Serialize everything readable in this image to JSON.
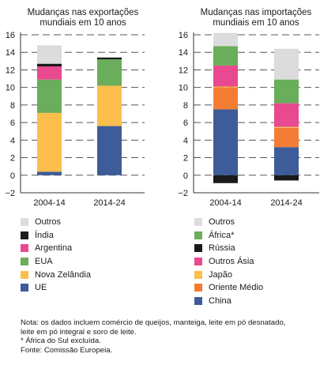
{
  "chart_data": [
    {
      "type": "bar",
      "stacked": true,
      "title": "Mudanças nas exportações\nmundiais em 10 anos",
      "categories": [
        "2004-14",
        "2014-24"
      ],
      "ylim": [
        -2,
        16
      ],
      "yticks": [
        16,
        14,
        12,
        10,
        8,
        6,
        4,
        2,
        0,
        -2
      ],
      "grid": "dashed horizontal",
      "legend_position": "bottom",
      "series": [
        {
          "name": "UE",
          "color": "#3e5c99",
          "values": [
            0.4,
            5.6
          ]
        },
        {
          "name": "Nova Zelândia",
          "color": "#fcbf4b",
          "values": [
            6.7,
            4.6
          ]
        },
        {
          "name": "EUA",
          "color": "#6aad5a",
          "values": [
            3.8,
            3.0
          ]
        },
        {
          "name": "Argentina",
          "color": "#e8498f",
          "values": [
            1.5,
            0.0
          ]
        },
        {
          "name": "Índia",
          "color": "#1a1a1a",
          "values": [
            0.3,
            0.2
          ]
        },
        {
          "name": "Outros",
          "color": "#dcdcdc",
          "values": [
            2.1,
            0.1
          ]
        }
      ]
    },
    {
      "type": "bar",
      "stacked": true,
      "title": "Mudanças nas importações\nmundiais em 10 anos",
      "categories": [
        "2004-14",
        "2014-24"
      ],
      "ylim": [
        -2,
        16
      ],
      "yticks": [
        16,
        14,
        12,
        10,
        8,
        6,
        4,
        2,
        0,
        -2
      ],
      "grid": "dashed horizontal",
      "legend_position": "bottom",
      "series": [
        {
          "name": "China",
          "color": "#3e5c99",
          "values": [
            7.5,
            3.2
          ]
        },
        {
          "name": "Oriente Médio",
          "color": "#f37d33",
          "values": [
            2.5,
            2.2
          ]
        },
        {
          "name": "Japão",
          "color": "#fcbf4b",
          "values": [
            0.1,
            0.1
          ]
        },
        {
          "name": "Outros Ásia",
          "color": "#e8498f",
          "values": [
            2.4,
            2.7
          ]
        },
        {
          "name": "Rússia",
          "color": "#1a1a1a",
          "values": [
            -0.9,
            -0.6
          ]
        },
        {
          "name": "África*",
          "color": "#6aad5a",
          "values": [
            2.2,
            2.7
          ]
        },
        {
          "name": "Outros",
          "color": "#dcdcdc",
          "values": [
            1.5,
            3.5
          ]
        }
      ]
    }
  ],
  "legend1": [
    {
      "label": "Outros",
      "color": "#dcdcdc"
    },
    {
      "label": "Índia",
      "color": "#1a1a1a"
    },
    {
      "label": "Argentina",
      "color": "#e8498f"
    },
    {
      "label": "EUA",
      "color": "#6aad5a"
    },
    {
      "label": "Nova Zelândia",
      "color": "#fcbf4b"
    },
    {
      "label": "UE",
      "color": "#3e5c99"
    }
  ],
  "legend2": [
    {
      "label": "Outros",
      "color": "#dcdcdc"
    },
    {
      "label": "África*",
      "color": "#6aad5a"
    },
    {
      "label": "Rússia",
      "color": "#1a1a1a"
    },
    {
      "label": "Outros Ásia",
      "color": "#e8498f"
    },
    {
      "label": "Japão",
      "color": "#fcbf4b"
    },
    {
      "label": "Oriente Médio",
      "color": "#f37d33"
    },
    {
      "label": "China",
      "color": "#3e5c99"
    }
  ],
  "notes": {
    "line1": "Nota: os dados incluem comércio de queijos, manteiga, leite em pó desnatado,",
    "line2": "leite em pó integral e soro de leite.",
    "line3": "* África do Sul excluída.",
    "line4": "Fonte: Comissão Europeia."
  }
}
